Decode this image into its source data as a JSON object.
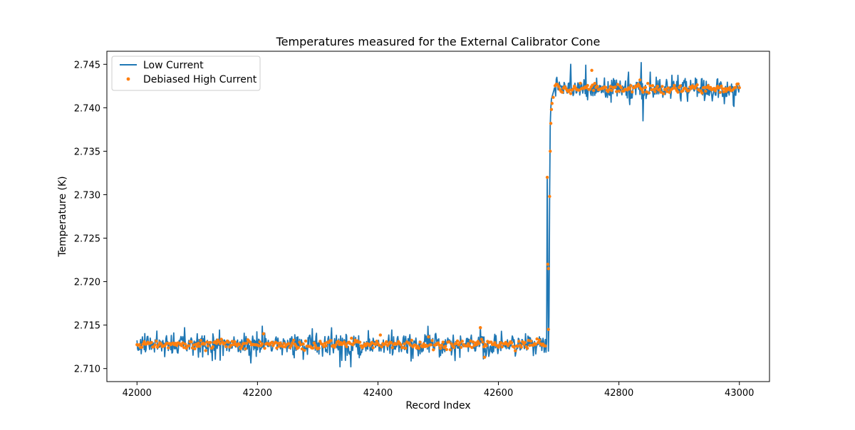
{
  "chart_data": {
    "type": "line",
    "title": "Temperatures measured for the External Calibrator Cone",
    "xlabel": "Record Index",
    "ylabel": "Temperature (K)",
    "xlim": [
      41950,
      43050
    ],
    "ylim": [
      2.7085,
      2.7465
    ],
    "x_ticks": [
      42000,
      42200,
      42400,
      42600,
      42800,
      43000
    ],
    "x_tick_labels": [
      "42000",
      "42200",
      "42400",
      "42600",
      "42800",
      "43000"
    ],
    "y_ticks": [
      2.71,
      2.715,
      2.72,
      2.725,
      2.73,
      2.735,
      2.74,
      2.745
    ],
    "y_tick_labels": [
      "2.710",
      "2.715",
      "2.720",
      "2.725",
      "2.730",
      "2.735",
      "2.740",
      "2.745"
    ],
    "grid": false,
    "legend_position": "top-left",
    "series": [
      {
        "name": "Low Current",
        "kind": "line",
        "color": "#1f77b4",
        "x_start": 42000,
        "x_end": 43000,
        "baseline_low": 2.7128,
        "baseline_high": 2.7422,
        "noise_sd": 0.00065,
        "transition": {
          "start": 42680,
          "end": 42692,
          "anchors": [
            {
              "x": 42680,
              "y": 2.713
            },
            {
              "x": 42681,
              "y": 2.732
            },
            {
              "x": 42682,
              "y": 2.7215
            },
            {
              "x": 42683,
              "y": 2.712
            },
            {
              "x": 42684,
              "y": 2.716
            },
            {
              "x": 42685,
              "y": 2.73
            },
            {
              "x": 42686,
              "y": 2.738
            },
            {
              "x": 42687,
              "y": 2.74
            },
            {
              "x": 42688,
              "y": 2.741
            },
            {
              "x": 42690,
              "y": 2.7415
            },
            {
              "x": 42692,
              "y": 2.742
            }
          ]
        },
        "features": [
          {
            "x": 42079,
            "y": 2.7147
          },
          {
            "x": 42337,
            "y": 2.7102
          },
          {
            "x": 42355,
            "y": 2.7102
          },
          {
            "x": 42570,
            "y": 2.7148
          },
          {
            "x": 42575,
            "y": 2.7111
          },
          {
            "x": 42720,
            "y": 2.745
          },
          {
            "x": 42745,
            "y": 2.7449
          },
          {
            "x": 42837,
            "y": 2.7452
          },
          {
            "x": 42840,
            "y": 2.7385
          },
          {
            "x": 42990,
            "y": 2.7403
          }
        ]
      },
      {
        "name": "Debiased High Current",
        "kind": "scatter",
        "color": "#ff7f0e",
        "x_start": 42000,
        "x_end": 43000,
        "baseline_low": 2.7128,
        "baseline_high": 2.7422,
        "noise_sd": 0.00028,
        "transition_points": [
          {
            "x": 42681,
            "y": 2.732
          },
          {
            "x": 42682,
            "y": 2.722
          },
          {
            "x": 42683,
            "y": 2.7215
          },
          {
            "x": 42683,
            "y": 2.7145
          },
          {
            "x": 42685,
            "y": 2.7298
          },
          {
            "x": 42686,
            "y": 2.735
          },
          {
            "x": 42687,
            "y": 2.7382
          },
          {
            "x": 42688,
            "y": 2.7398
          },
          {
            "x": 42689,
            "y": 2.7405
          },
          {
            "x": 42691,
            "y": 2.7412
          }
        ],
        "features": [
          {
            "x": 42210,
            "y": 2.714
          },
          {
            "x": 42570,
            "y": 2.7147
          },
          {
            "x": 42577,
            "y": 2.7113
          },
          {
            "x": 42755,
            "y": 2.7443
          },
          {
            "x": 42835,
            "y": 2.7432
          },
          {
            "x": 42840,
            "y": 2.7418
          }
        ]
      }
    ]
  }
}
